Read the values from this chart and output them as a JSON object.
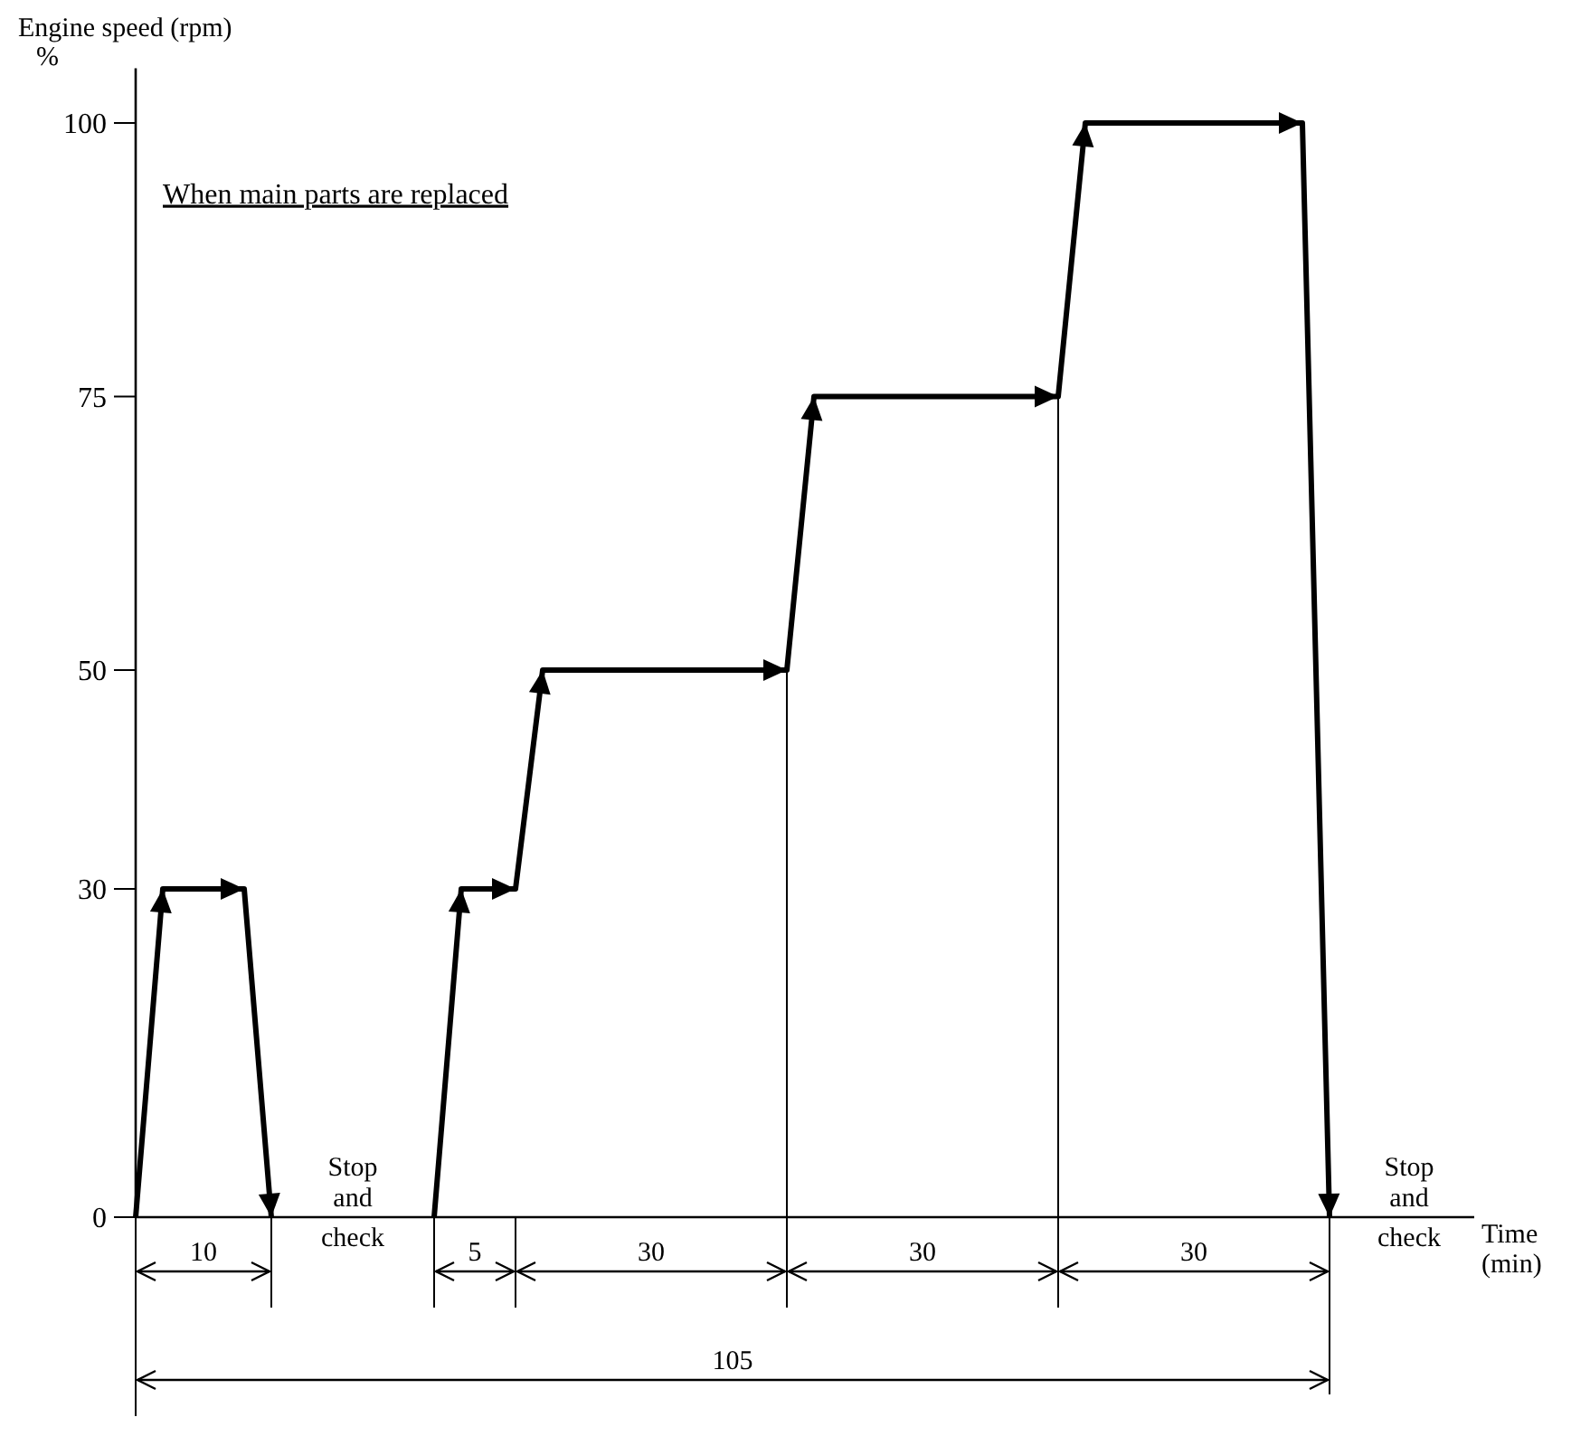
{
  "chart_data": {
    "type": "line",
    "title": "When main parts are replaced",
    "ylabel": "Engine speed (rpm)",
    "ylim": [
      0,
      105
    ],
    "yticks": [
      0,
      30,
      50,
      75,
      100
    ],
    "categories": [
      null,
      null,
      null,
      null,
      null,
      null,
      null,
      null,
      null,
      null,
      null,
      null,
      null,
      null,
      null,
      null,
      null,
      null,
      null,
      null,
      null,
      null,
      null,
      null,
      null,
      null,
      null,
      null,
      null,
      null,
      null,
      null,
      null,
      null,
      null,
      null,
      null,
      null,
      null,
      null,
      null,
      null,
      null,
      null,
      null
    ],
    "tick_labels": "y",
    "marker": "none",
    "line_style": "solid",
    "series": [
      {
        "color": "#000000",
        "values": [
          0,
          30,
          30,
          30,
          30,
          0,
          null,
          null,
          null,
          null,
          null,
          null,
          null,
          null,
          null,
          null,
          null,
          null,
          null,
          null,
          null,
          null,
          null,
          null,
          null,
          null,
          null,
          null,
          null,
          null,
          null,
          null,
          null,
          null,
          null,
          null,
          null,
          null,
          null,
          null,
          null,
          null,
          null,
          null,
          null
        ]
      },
      {
        "color": "#000000",
        "values": [
          null,
          null,
          null,
          null,
          null,
          null,
          null,
          null,
          null,
          null,
          null,
          0,
          30,
          30,
          30,
          50,
          50,
          50,
          50,
          50,
          50,
          50,
          50,
          50,
          50,
          75,
          75,
          75,
          75,
          75,
          75,
          75,
          75,
          75,
          75,
          100,
          100,
          100,
          100,
          100,
          100,
          100,
          100,
          100,
          0
        ]
      }
    ],
    "annotations": [
      "%",
      "10",
      "Stop and check",
      "5",
      "30",
      "30",
      "30",
      "Stop and check",
      "105",
      "Time (min)"
    ]
  }
}
